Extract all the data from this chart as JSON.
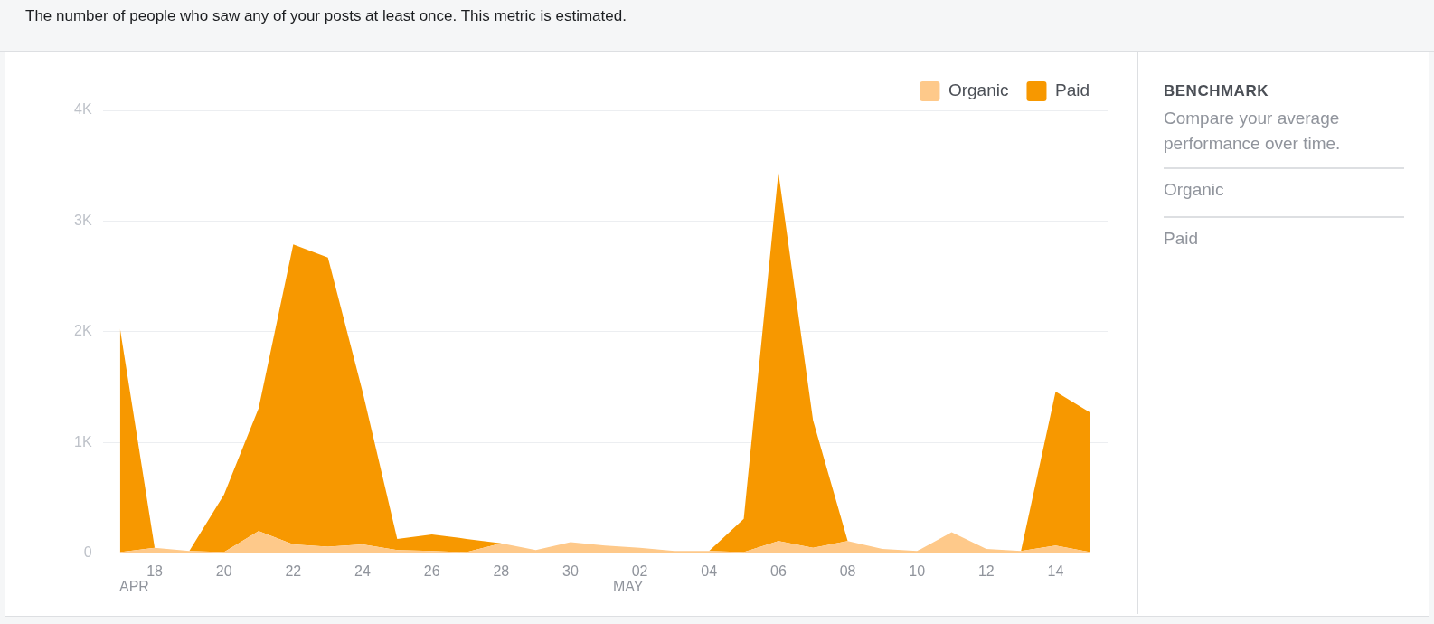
{
  "chart_data": {
    "type": "area",
    "stacked": true,
    "categories": [
      null,
      "18",
      null,
      "20",
      null,
      "22",
      null,
      "24",
      null,
      "26",
      null,
      "28",
      null,
      "30",
      null,
      "02",
      null,
      "04",
      null,
      "06",
      null,
      "08",
      null,
      "10",
      null,
      "12",
      null,
      "14",
      null
    ],
    "series": [
      {
        "name": "Organic",
        "color": "#fec98a",
        "values": [
          10,
          50,
          20,
          10,
          200,
          80,
          60,
          80,
          30,
          20,
          10,
          90,
          30,
          100,
          70,
          50,
          20,
          20,
          10,
          110,
          50,
          110,
          40,
          20,
          190,
          40,
          20,
          70,
          10
        ]
      },
      {
        "name": "Paid",
        "color": "#f79800",
        "values": [
          2020,
          0,
          0,
          520,
          1110,
          2710,
          2610,
          1380,
          100,
          150,
          120,
          0,
          0,
          0,
          0,
          0,
          0,
          0,
          300,
          3330,
          1150,
          0,
          0,
          0,
          0,
          0,
          0,
          1390,
          1260
        ]
      }
    ],
    "ylim": [
      0,
      4000
    ],
    "yticks": [
      0,
      {
        "value": 1000,
        "label": "1K"
      },
      {
        "value": 2000,
        "label": "2K"
      },
      {
        "value": 3000,
        "label": "3K"
      },
      {
        "value": 4000,
        "label": "4K"
      }
    ],
    "grid": "y",
    "legend": "top right",
    "marker": "none",
    "annotations": [
      "The number of people who saw any of your posts at least once. This metric is estimated.",
      "APR",
      "MAY",
      "BENCHMARK",
      "Compare your average performance over time.",
      "Organic",
      "Paid"
    ]
  }
}
